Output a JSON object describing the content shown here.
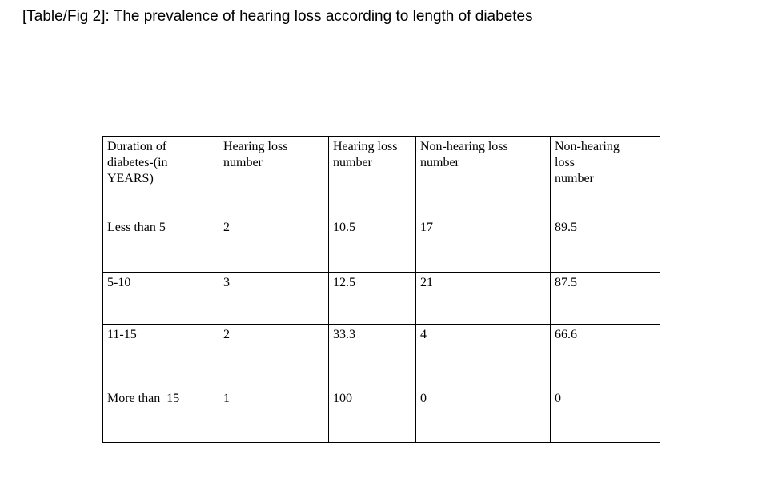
{
  "title": "[Table/Fig 2]: The prevalence of hearing loss according to length of diabetes",
  "colors": {
    "background": "#ffffff",
    "text": "#000000",
    "table_border": "#000000"
  },
  "table": {
    "headers": [
      "Duration of\ndiabetes-(in\nYEARS)",
      "Hearing loss\nnumber",
      "Hearing loss\nnumber",
      "Non-hearing loss\nnumber",
      "Non-hearing\nloss\nnumber"
    ],
    "rows": [
      [
        "Less than 5",
        "2",
        "10.5",
        "17",
        "89.5"
      ],
      [
        "5-10",
        "3",
        "12.5",
        "21",
        "87.5"
      ],
      [
        "11-15",
        "2",
        "33.3",
        "4",
        "66.6"
      ],
      [
        "More than  15",
        "1",
        "100",
        "0",
        "0"
      ]
    ]
  }
}
